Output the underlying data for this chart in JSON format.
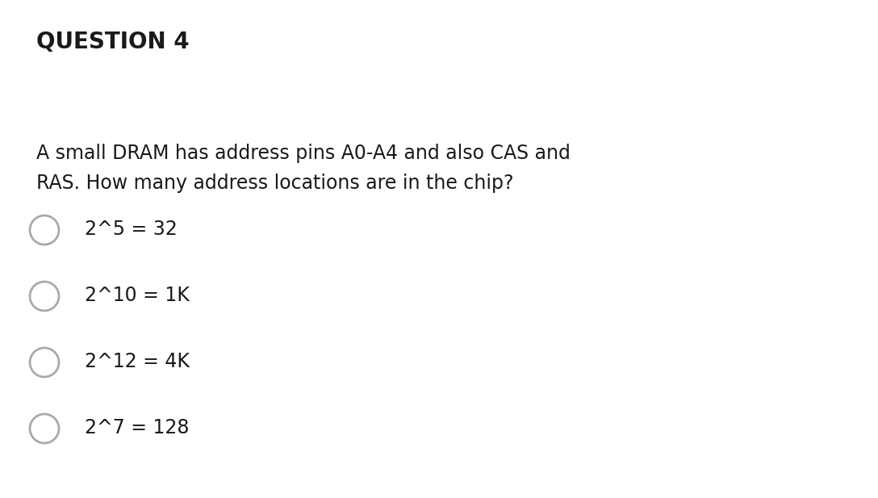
{
  "background_color": "#ffffff",
  "title": "QUESTION 4",
  "title_fontsize": 20,
  "title_fontweight": "bold",
  "title_color": "#1a1a1a",
  "question_line1": "A small DRAM has address pins A0-A4 and also CAS and",
  "question_line2": "RAS. How many address locations are in the chip?",
  "question_fontsize": 17,
  "question_color": "#1a1a1a",
  "options": [
    "2^5 = 32",
    "2^10 = 1K",
    "2^12 = 4K",
    "2^7 = 128"
  ],
  "option_fontsize": 17,
  "option_color": "#1a1a1a",
  "circle_color": "#aaaaaa",
  "circle_linewidth": 2.0,
  "fig_width": 10.88,
  "fig_height": 6.17,
  "dpi": 100
}
